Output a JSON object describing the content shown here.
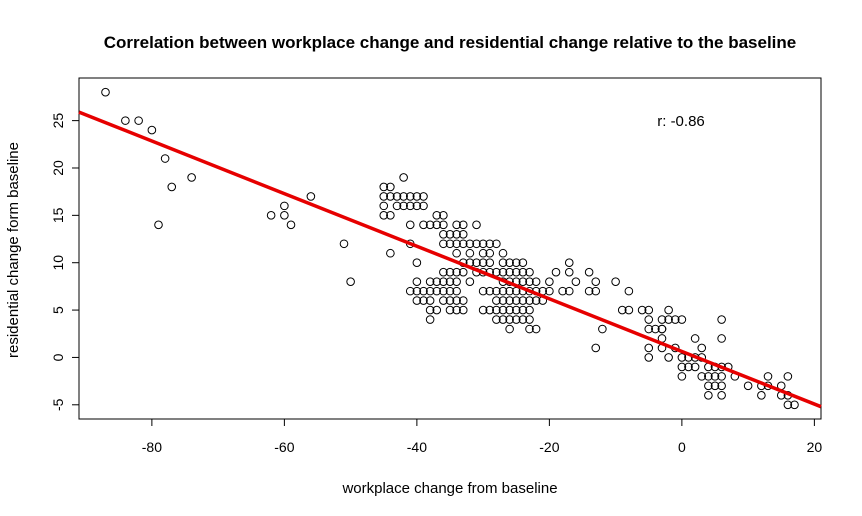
{
  "chart_data": {
    "type": "scatter",
    "title": "Correlation between workplace change and residential change relative to the baseline",
    "xlabel": "workplace change from baseline",
    "ylabel": "residential change form baseline",
    "xlim": [
      -91,
      21
    ],
    "ylim": [
      -6.5,
      29.5
    ],
    "xticks": [
      -80,
      -60,
      -40,
      -20,
      0,
      20
    ],
    "yticks": [
      -5,
      0,
      5,
      10,
      15,
      20,
      25
    ],
    "annotation": "r: -0.86",
    "fit_line": {
      "color": "#e60000",
      "x": [
        -91,
        21
      ],
      "y": [
        25.9,
        -5.2
      ]
    },
    "grid": false,
    "points": [
      [
        -87,
        28
      ],
      [
        -84,
        25
      ],
      [
        -82,
        25
      ],
      [
        -80,
        24
      ],
      [
        -78,
        21
      ],
      [
        -77,
        18
      ],
      [
        -79,
        14
      ],
      [
        -74,
        19
      ],
      [
        -62,
        15
      ],
      [
        -60,
        16
      ],
      [
        -60,
        15
      ],
      [
        -59,
        14
      ],
      [
        -56,
        17
      ],
      [
        -51,
        12
      ],
      [
        -50,
        8
      ],
      [
        -44,
        11
      ],
      [
        -45,
        17
      ],
      [
        -44,
        17
      ],
      [
        -43,
        17
      ],
      [
        -42,
        17
      ],
      [
        -41,
        17
      ],
      [
        -40,
        17
      ],
      [
        -39,
        17
      ],
      [
        -44,
        18
      ],
      [
        -45,
        18
      ],
      [
        -43,
        16
      ],
      [
        -42,
        16
      ],
      [
        -41,
        16
      ],
      [
        -40,
        16
      ],
      [
        -39,
        16
      ],
      [
        -45,
        16
      ],
      [
        -45,
        15
      ],
      [
        -44,
        15
      ],
      [
        -42,
        19
      ],
      [
        -41,
        14
      ],
      [
        -39,
        14
      ],
      [
        -38,
        14
      ],
      [
        -37,
        14
      ],
      [
        -37,
        15
      ],
      [
        -36,
        15
      ],
      [
        -36,
        14
      ],
      [
        -41,
        12
      ],
      [
        -40,
        10
      ],
      [
        -40,
        8
      ],
      [
        -36,
        13
      ],
      [
        -35,
        13
      ],
      [
        -34,
        13
      ],
      [
        -33,
        13
      ],
      [
        -36,
        12
      ],
      [
        -35,
        12
      ],
      [
        -34,
        12
      ],
      [
        -33,
        12
      ],
      [
        -32,
        12
      ],
      [
        -31,
        12
      ],
      [
        -30,
        12
      ],
      [
        -29,
        12
      ],
      [
        -28,
        12
      ],
      [
        -34,
        14
      ],
      [
        -33,
        14
      ],
      [
        -31,
        14
      ],
      [
        -34,
        11
      ],
      [
        -32,
        11
      ],
      [
        -33,
        10
      ],
      [
        -32,
        10
      ],
      [
        -31,
        10
      ],
      [
        -30,
        10
      ],
      [
        -29,
        10
      ],
      [
        -30,
        11
      ],
      [
        -29,
        11
      ],
      [
        -31,
        9
      ],
      [
        -30,
        9
      ],
      [
        -29,
        9
      ],
      [
        -28,
        9
      ],
      [
        -27,
        9
      ],
      [
        -26,
        9
      ],
      [
        -34,
        9
      ],
      [
        -33,
        9
      ],
      [
        -32,
        8
      ],
      [
        -36,
        9
      ],
      [
        -35,
        9
      ],
      [
        -41,
        7
      ],
      [
        -40,
        7
      ],
      [
        -39,
        7
      ],
      [
        -38,
        7
      ],
      [
        -37,
        7
      ],
      [
        -36,
        7
      ],
      [
        -35,
        7
      ],
      [
        -34,
        7
      ],
      [
        -40,
        6
      ],
      [
        -39,
        6
      ],
      [
        -38,
        6
      ],
      [
        -36,
        6
      ],
      [
        -35,
        6
      ],
      [
        -34,
        6
      ],
      [
        -33,
        6
      ],
      [
        -38,
        5
      ],
      [
        -37,
        5
      ],
      [
        -35,
        5
      ],
      [
        -34,
        5
      ],
      [
        -33,
        5
      ],
      [
        -38,
        4
      ],
      [
        -37,
        8
      ],
      [
        -36,
        8
      ],
      [
        -35,
        8
      ],
      [
        -38,
        8
      ],
      [
        -34,
        8
      ],
      [
        -30,
        7
      ],
      [
        -29,
        7
      ],
      [
        -28,
        7
      ],
      [
        -27,
        7
      ],
      [
        -30,
        5
      ],
      [
        -29,
        5
      ],
      [
        -28,
        5
      ],
      [
        -27,
        5
      ],
      [
        -28,
        4
      ],
      [
        -27,
        4
      ],
      [
        -28,
        6
      ],
      [
        -27,
        6
      ],
      [
        -27,
        8
      ],
      [
        -27,
        10
      ],
      [
        -26,
        10
      ],
      [
        -25,
        10
      ],
      [
        -24,
        10
      ],
      [
        -27,
        11
      ],
      [
        -26,
        8
      ],
      [
        -25,
        8
      ],
      [
        -24,
        8
      ],
      [
        -23,
        8
      ],
      [
        -22,
        8
      ],
      [
        -26,
        7
      ],
      [
        -25,
        7
      ],
      [
        -24,
        7
      ],
      [
        -23,
        7
      ],
      [
        -22,
        7
      ],
      [
        -26,
        6
      ],
      [
        -25,
        6
      ],
      [
        -24,
        6
      ],
      [
        -23,
        6
      ],
      [
        -22,
        6
      ],
      [
        -26,
        5
      ],
      [
        -25,
        5
      ],
      [
        -24,
        5
      ],
      [
        -23,
        5
      ],
      [
        -26,
        4
      ],
      [
        -25,
        4
      ],
      [
        -24,
        4
      ],
      [
        -23,
        4
      ],
      [
        -26,
        3
      ],
      [
        -23,
        3
      ],
      [
        -22,
        3
      ],
      [
        -25,
        9
      ],
      [
        -24,
        9
      ],
      [
        -23,
        9
      ],
      [
        -21,
        7
      ],
      [
        -21,
        6
      ],
      [
        -20,
        7
      ],
      [
        -20,
        8
      ],
      [
        -19,
        9
      ],
      [
        -17,
        9
      ],
      [
        -17,
        10
      ],
      [
        -16,
        8
      ],
      [
        -18,
        7
      ],
      [
        -17,
        7
      ],
      [
        -14,
        9
      ],
      [
        -13,
        8
      ],
      [
        -14,
        7
      ],
      [
        -13,
        7
      ],
      [
        -12,
        3
      ],
      [
        -13,
        1
      ],
      [
        -10,
        8
      ],
      [
        -9,
        5
      ],
      [
        -8,
        5
      ],
      [
        -8,
        7
      ],
      [
        -6,
        5
      ],
      [
        -5,
        5
      ],
      [
        -5,
        4
      ],
      [
        -5,
        3
      ],
      [
        -4,
        3
      ],
      [
        -3,
        3
      ],
      [
        -3,
        1
      ],
      [
        -5,
        1
      ],
      [
        -5,
        0
      ],
      [
        -2,
        0
      ],
      [
        -3,
        4
      ],
      [
        -2,
        4
      ],
      [
        -2,
        5
      ],
      [
        -1,
        4
      ],
      [
        0,
        4
      ],
      [
        -3,
        2
      ],
      [
        -3,
        3
      ],
      [
        -1,
        1
      ],
      [
        0,
        0
      ],
      [
        1,
        0
      ],
      [
        2,
        0
      ],
      [
        0,
        -1
      ],
      [
        1,
        -1
      ],
      [
        2,
        -1
      ],
      [
        0,
        -2
      ],
      [
        2,
        2
      ],
      [
        3,
        1
      ],
      [
        3,
        0
      ],
      [
        4,
        -1
      ],
      [
        5,
        -1
      ],
      [
        3,
        -2
      ],
      [
        4,
        -2
      ],
      [
        5,
        -2
      ],
      [
        6,
        -2
      ],
      [
        4,
        -3
      ],
      [
        5,
        -3
      ],
      [
        6,
        -3
      ],
      [
        4,
        -4
      ],
      [
        6,
        -4
      ],
      [
        6,
        -1
      ],
      [
        7,
        -1
      ],
      [
        8,
        -2
      ],
      [
        6,
        4
      ],
      [
        6,
        2
      ],
      [
        10,
        -3
      ],
      [
        12,
        -3
      ],
      [
        12,
        -4
      ],
      [
        13,
        -2
      ],
      [
        13,
        -3
      ],
      [
        15,
        -3
      ],
      [
        15,
        -4
      ],
      [
        16,
        -4
      ],
      [
        16,
        -2
      ],
      [
        16,
        -5
      ],
      [
        17,
        -5
      ]
    ]
  }
}
